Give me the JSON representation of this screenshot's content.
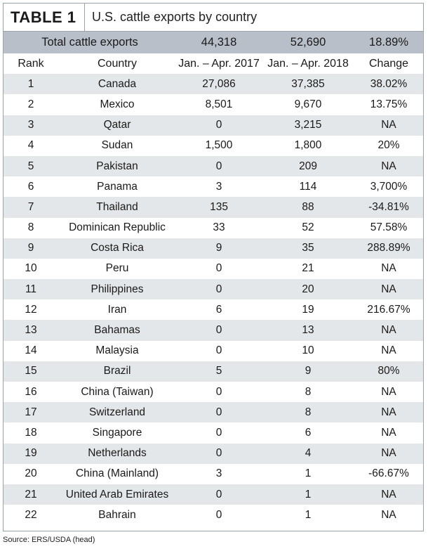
{
  "title": {
    "tag": "TABLE 1",
    "text": "U.S. cattle exports by country"
  },
  "total": {
    "label": "Total cattle exports",
    "y2017": "44,318",
    "y2018": "52,690",
    "change": "18.89%"
  },
  "columns": {
    "rank": "Rank",
    "country": "Country",
    "y2017": "Jan. – Apr. 2017",
    "y2018": "Jan. – Apr. 2018",
    "change": "Change"
  },
  "rows": [
    {
      "rank": "1",
      "country": "Canada",
      "y2017": "27,086",
      "y2018": "37,385",
      "change": "38.02%"
    },
    {
      "rank": "2",
      "country": "Mexico",
      "y2017": "8,501",
      "y2018": "9,670",
      "change": "13.75%"
    },
    {
      "rank": "3",
      "country": "Qatar",
      "y2017": "0",
      "y2018": "3,215",
      "change": "NA"
    },
    {
      "rank": "4",
      "country": "Sudan",
      "y2017": "1,500",
      "y2018": "1,800",
      "change": "20%"
    },
    {
      "rank": "5",
      "country": "Pakistan",
      "y2017": "0",
      "y2018": "209",
      "change": "NA"
    },
    {
      "rank": "6",
      "country": "Panama",
      "y2017": "3",
      "y2018": "114",
      "change": "3,700%"
    },
    {
      "rank": "7",
      "country": "Thailand",
      "y2017": "135",
      "y2018": "88",
      "change": "-34.81%"
    },
    {
      "rank": "8",
      "country": "Dominican Republic",
      "y2017": "33",
      "y2018": "52",
      "change": "57.58%"
    },
    {
      "rank": "9",
      "country": "Costa Rica",
      "y2017": "9",
      "y2018": "35",
      "change": "288.89%"
    },
    {
      "rank": "10",
      "country": "Peru",
      "y2017": "0",
      "y2018": "21",
      "change": "NA"
    },
    {
      "rank": "11",
      "country": "Philippines",
      "y2017": "0",
      "y2018": "20",
      "change": "NA"
    },
    {
      "rank": "12",
      "country": "Iran",
      "y2017": "6",
      "y2018": "19",
      "change": "216.67%"
    },
    {
      "rank": "13",
      "country": "Bahamas",
      "y2017": "0",
      "y2018": "13",
      "change": "NA"
    },
    {
      "rank": "14",
      "country": "Malaysia",
      "y2017": "0",
      "y2018": "10",
      "change": "NA"
    },
    {
      "rank": "15",
      "country": "Brazil",
      "y2017": "5",
      "y2018": "9",
      "change": "80%"
    },
    {
      "rank": "16",
      "country": "China (Taiwan)",
      "y2017": "0",
      "y2018": "8",
      "change": "NA"
    },
    {
      "rank": "17",
      "country": "Switzerland",
      "y2017": "0",
      "y2018": "8",
      "change": "NA"
    },
    {
      "rank": "18",
      "country": "Singapore",
      "y2017": "0",
      "y2018": "6",
      "change": "NA"
    },
    {
      "rank": "19",
      "country": "Netherlands",
      "y2017": "0",
      "y2018": "4",
      "change": "NA"
    },
    {
      "rank": "20",
      "country": "China (Mainland)",
      "y2017": "3",
      "y2018": "1",
      "change": "-66.67%"
    },
    {
      "rank": "21",
      "country": "United Arab Emirates",
      "y2017": "0",
      "y2018": "1",
      "change": "NA"
    },
    {
      "rank": "22",
      "country": "Bahrain",
      "y2017": "0",
      "y2018": "1",
      "change": "NA"
    }
  ],
  "source": "Source: ERS/USDA (head)"
}
